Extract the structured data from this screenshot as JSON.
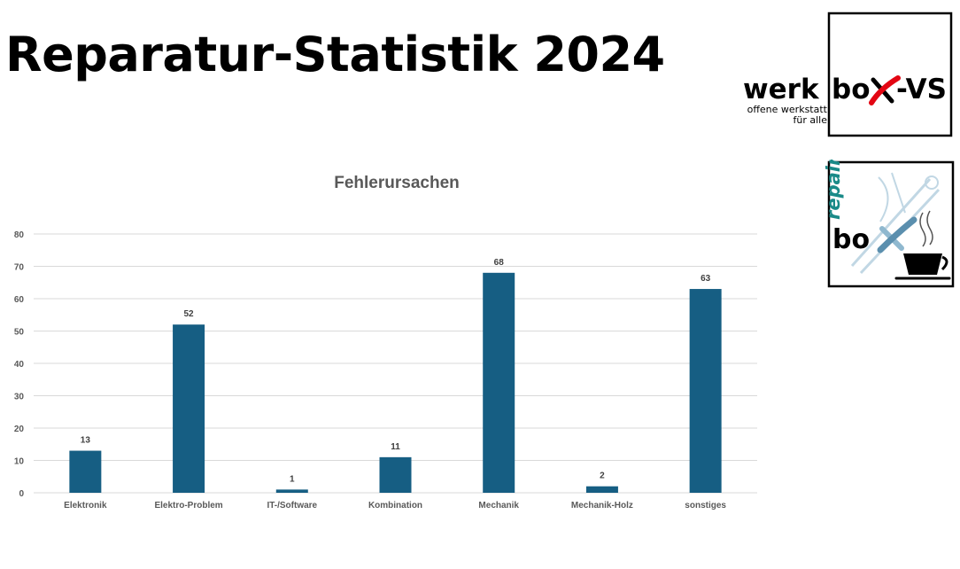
{
  "slide": {
    "title": "Reparatur-Statistik 2024"
  },
  "logos": {
    "werkbox": {
      "word_left": "werk",
      "word_box_1": "bo",
      "word_box_2": "-VS",
      "tagline_1": "offene werkstatt",
      "tagline_2": "für alle"
    },
    "repair_box": {
      "word_vertical": "repair",
      "word_box": "bo"
    }
  },
  "colors": {
    "bar": "#165e83",
    "grid": "#d9d9d9",
    "axis_text": "#595959",
    "logo_red": "#e30613",
    "logo_teal": "#1a8a88",
    "logo_light_blue": "#8fb8cf"
  },
  "chart_data": {
    "type": "bar",
    "title": "Fehlerursachen",
    "categories": [
      "Elektronik",
      "Elektro-Problem",
      "IT-/Software",
      "Kombination",
      "Mechanik",
      "Mechanik-Holz",
      "sonstiges"
    ],
    "values": [
      13,
      52,
      1,
      11,
      68,
      2,
      63
    ],
    "xlabel": "",
    "ylabel": "",
    "ylim": [
      0,
      80
    ],
    "yticks": [
      0,
      10,
      20,
      30,
      40,
      50,
      60,
      70,
      80
    ],
    "grid": true,
    "legend": "none",
    "data_labels": true
  }
}
